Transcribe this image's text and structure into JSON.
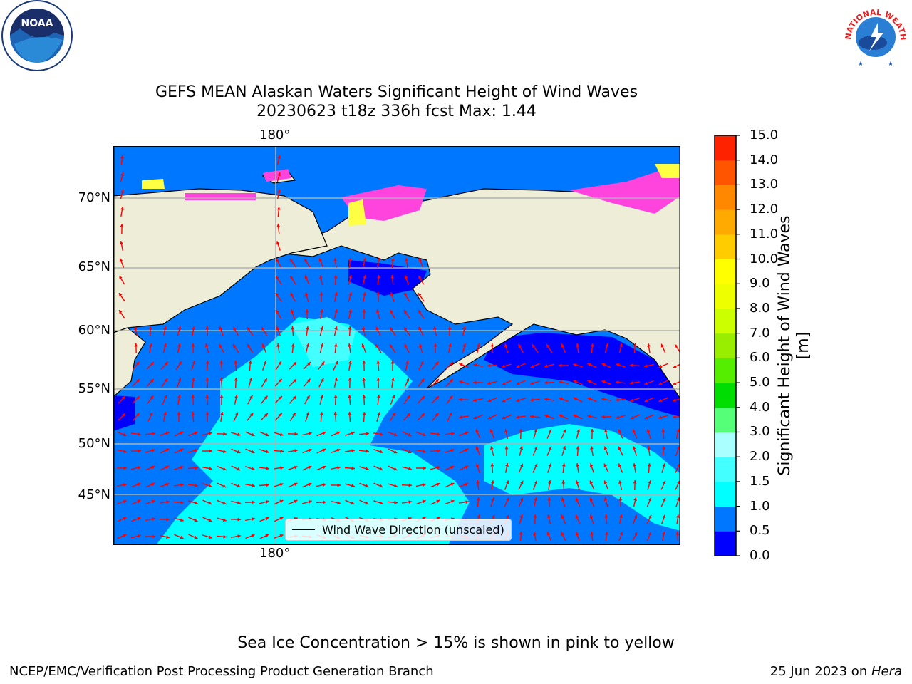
{
  "header": {
    "title_line1": "GEFS MEAN Alaskan Waters Significant Height of Wind Waves",
    "title_line2": "20230623 t18z 336h fcst   Max: 1.44"
  },
  "logos": {
    "left": {
      "icon": "noaa-logo",
      "text": "NOAA"
    },
    "right": {
      "icon": "nws-logo",
      "text": "NATIONAL WEATHER SERVICE"
    }
  },
  "map": {
    "lat_labels": [
      "70°N",
      "65°N",
      "60°N",
      "55°N",
      "50°N",
      "45°N"
    ],
    "lon_label_top": "180°",
    "lon_label_bottom": "180°",
    "colors": {
      "land": "#eeeed8",
      "water_0_05": "#0000ff",
      "water_05_1": "#0077ff",
      "water_1_15": "#00ffff",
      "water_15_2": "#44ffff",
      "ice_pink": "#ff44dd",
      "ice_yellow": "#ffff44",
      "arrow": "#ff0000",
      "grid": "#b0b0b0"
    },
    "legend_label": "Wind Wave Direction (unscaled)"
  },
  "colorbar": {
    "label": "Significant Height of Wind Waves [m]",
    "ticks": [
      "15.0",
      "14.0",
      "13.0",
      "12.0",
      "11.0",
      "10.0",
      "9.0",
      "8.0",
      "7.0",
      "6.0",
      "5.0",
      "4.0",
      "3.0",
      "2.0",
      "1.5",
      "1.0",
      "0.5",
      "0.0"
    ],
    "colors_bottom_to_top": [
      "#0000ff",
      "#0077ff",
      "#00ffff",
      "#44ffff",
      "#aaffff",
      "#55ff77",
      "#00dd00",
      "#55ee00",
      "#99ee00",
      "#ccff00",
      "#eeff00",
      "#ffff00",
      "#ffcc00",
      "#ffaa00",
      "#ff8800",
      "#ff5500",
      "#ff2200"
    ]
  },
  "note": "Sea Ice Concentration > 15% is shown in pink to yellow",
  "footer": {
    "left": "NCEP/EMC/Verification Post Processing Product Generation Branch",
    "right_prefix": "25 Jun 2023 on ",
    "right_host": "Hera"
  }
}
